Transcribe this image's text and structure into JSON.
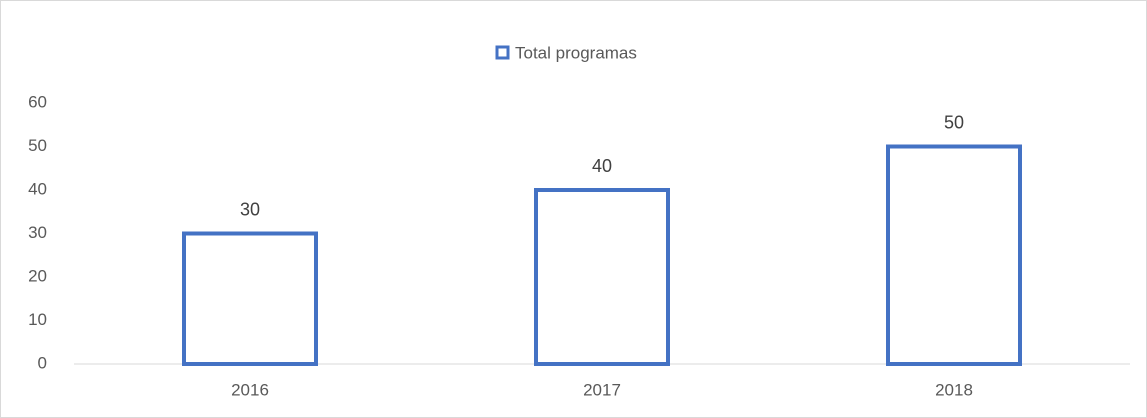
{
  "chart_data": {
    "type": "bar",
    "legend_title": "Total programas",
    "series": [
      {
        "name": "Total programas",
        "color": "#4472c4",
        "values": [
          30,
          40,
          50
        ]
      }
    ],
    "categories": [
      "2016",
      "2017",
      "2018"
    ],
    "ylim": [
      0,
      60
    ],
    "yticks": [
      0,
      10,
      20,
      30,
      40,
      50,
      60
    ],
    "grid": false,
    "legend": "top"
  }
}
